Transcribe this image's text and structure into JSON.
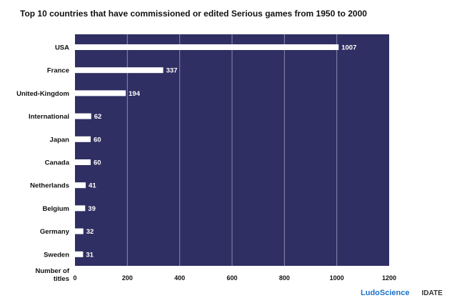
{
  "chart_data": {
    "type": "bar",
    "orientation": "horizontal",
    "title": "Top 10 countries that have commissioned or edited Serious games from 1950 to 2000",
    "categories": [
      "USA",
      "France",
      "United-Kingdom",
      "International",
      "Japan",
      "Canada",
      "Netherlands",
      "Belgium",
      "Germany",
      "Sweden"
    ],
    "values": [
      1007,
      337,
      194,
      62,
      60,
      60,
      41,
      39,
      32,
      31
    ],
    "value_labels": [
      "1007",
      "337",
      "194",
      "62",
      "60",
      "60",
      "41",
      "39",
      "32",
      "31"
    ],
    "xlabel_lines": [
      "Number of",
      "titles"
    ],
    "xlim": [
      0,
      1200
    ],
    "xticks": [
      "0",
      "200",
      "400",
      "600",
      "800",
      "1000",
      "1200"
    ],
    "grid": true,
    "colors": {
      "background": "#2f2f63",
      "bar": "#ffffff",
      "grid": "#8a8ab0"
    }
  },
  "branding": {
    "logo_left": "LudoScience",
    "logo_right": "IDATE"
  }
}
